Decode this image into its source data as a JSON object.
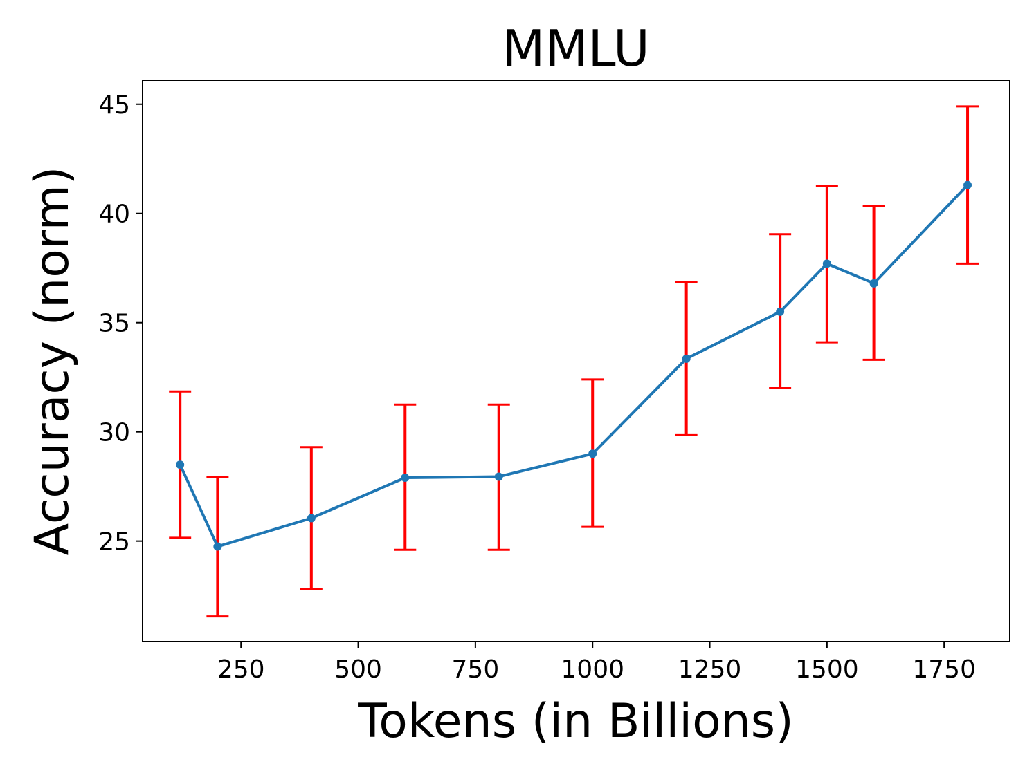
{
  "chart_data": {
    "type": "line",
    "title": "MMLU",
    "xlabel": "Tokens (in Billions)",
    "ylabel": "Accuracy (norm)",
    "xlim": [
      40,
      1890
    ],
    "ylim": [
      20.4,
      46.1
    ],
    "xticks": [
      250,
      500,
      750,
      1000,
      1250,
      1500,
      1750
    ],
    "yticks": [
      25,
      30,
      35,
      40,
      45
    ],
    "grid": false,
    "legend": "none",
    "series": [
      {
        "color": "#1f77b4",
        "x": [
          120,
          200,
          400,
          600,
          800,
          1000,
          1200,
          1400,
          1500,
          1600,
          1800
        ],
        "y": [
          28.5,
          24.75,
          26.05,
          27.9,
          27.95,
          29.0,
          33.35,
          35.5,
          37.7,
          36.8,
          41.3
        ],
        "err_low": [
          25.15,
          21.55,
          22.8,
          24.6,
          24.6,
          25.65,
          29.85,
          32.0,
          34.1,
          33.3,
          37.7
        ],
        "err_high": [
          31.85,
          27.95,
          29.3,
          31.25,
          31.25,
          32.4,
          36.85,
          39.05,
          41.25,
          40.35,
          44.9
        ],
        "error_color": "#ff0000"
      }
    ]
  }
}
